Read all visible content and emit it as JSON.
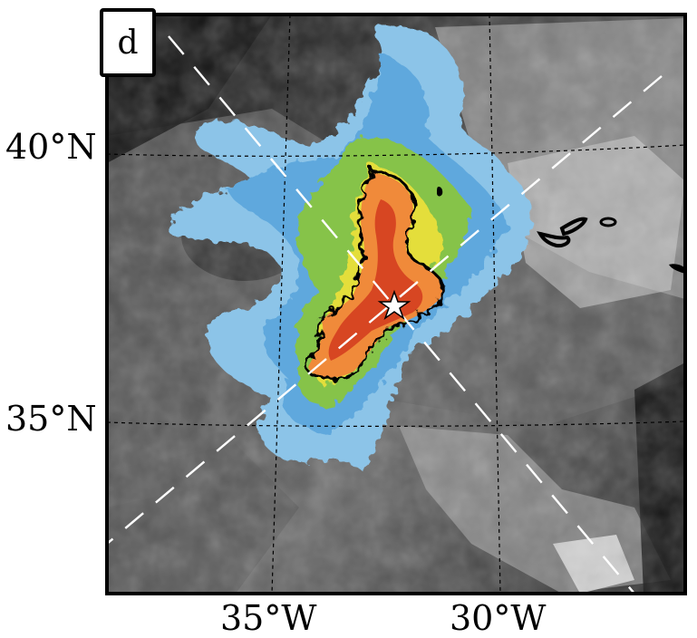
{
  "panel": {
    "letter": "d"
  },
  "map": {
    "lat_labels": [
      "40°N",
      "35°N"
    ],
    "lon_labels": [
      "35°W",
      "30°W"
    ],
    "colors": {
      "background_dark": "#1a1a1a",
      "background_mid": "#6e6e6e",
      "cloud_light": "#cfcfcf",
      "plume_outer": "#8cc4e8",
      "plume_blue": "#5fa8dd",
      "plume_green": "#86c34a",
      "plume_yellow": "#e4de3a",
      "plume_orange": "#f08a3a",
      "plume_red": "#d23a1e",
      "contour": "#000000",
      "source_marker": "#ffffff",
      "track_line": "#ffffff"
    },
    "source_marker": "white-star-icon"
  }
}
